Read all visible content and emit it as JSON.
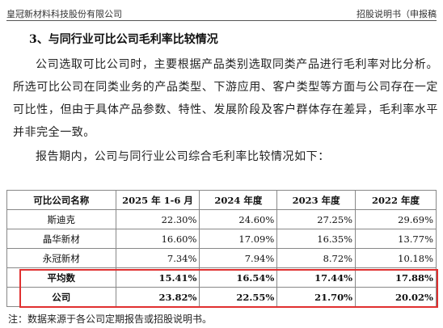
{
  "header": {
    "company": "皇冠新材料科技股份有限公司",
    "doc_type": "招股说明书（申报稿"
  },
  "section_title": "3、与同行业可比公司毛利率比较情况",
  "paragraphs": [
    "公司选取可比公司时，主要根据产品类别选取同类产品进行毛利率对比分析。所选可比公司在同类业务的产品类型、下游应用、客户类型等方面与公司存在一定可比性，但由于具体产品参数、特性、发展阶段及客户群体存在差异，毛利率水平并非完全一致。",
    "报告期内，公司与同行业公司综合毛利率比较情况如下："
  ],
  "table": {
    "headers": [
      "可比公司名称",
      "2025 年 1-6 月",
      "2024 年度",
      "2023 年度",
      "2022 年度"
    ],
    "rows": [
      {
        "name": "斯迪克",
        "v": [
          "22.30%",
          "24.60%",
          "27.25%",
          "29.69%"
        ]
      },
      {
        "name": "晶华新材",
        "v": [
          "16.60%",
          "17.09%",
          "16.35%",
          "13.77%"
        ]
      },
      {
        "name": "永冠新材",
        "v": [
          "7.34%",
          "7.94%",
          "8.72%",
          "10.18%"
        ]
      },
      {
        "name": "平均数",
        "v": [
          "15.41%",
          "16.54%",
          "17.44%",
          "17.88%"
        ]
      },
      {
        "name": "公司",
        "v": [
          "23.82%",
          "22.55%",
          "21.70%",
          "20.02%"
        ]
      }
    ]
  },
  "note": "注：数据来源于各公司定期报告或招股说明书。",
  "highlight_color": "#e03030"
}
